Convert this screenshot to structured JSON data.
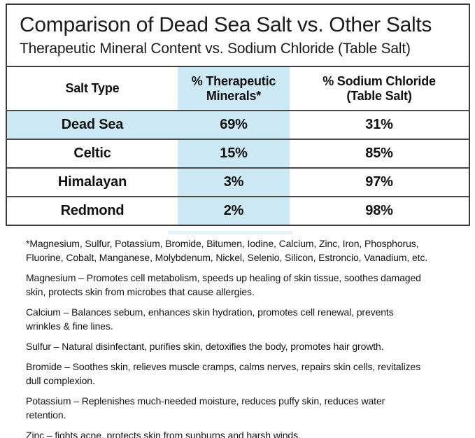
{
  "header": {
    "title": "Comparison of Dead Sea Salt vs. Other Salts",
    "subtitle": "Therapeutic Mineral Content vs. Sodium Chloride (Table Salt)"
  },
  "table": {
    "headers": {
      "salt_type": "Salt Type",
      "therapeutic_line1": "% Therapeutic",
      "therapeutic_line2": "Minerals*",
      "sodium_line1": "%  Sodium Chloride",
      "sodium_line2": "(Table Salt)"
    },
    "rows": [
      {
        "salt_type": "Dead Sea",
        "therapeutic_minerals": "69%",
        "sodium_chloride": "31%",
        "highlighted": true
      },
      {
        "salt_type": "Celtic",
        "therapeutic_minerals": "15%",
        "sodium_chloride": "85%",
        "highlighted": false
      },
      {
        "salt_type": "Himalayan",
        "therapeutic_minerals": "3%",
        "sodium_chloride": "97%",
        "highlighted": false
      },
      {
        "salt_type": "Redmond",
        "therapeutic_minerals": "2%",
        "sodium_chloride": "98%",
        "highlighted": false
      }
    ]
  },
  "footnotes": {
    "paragraphs": [
      "*Magnesium, Sulfur, Potassium, Bromide, Bitumen, Iodine, Calcium, Zinc, Iron, Phosphorus,\nFluorine, Cobalt, Manganese, Molybdenum, Nickel, Selenio, Silicon, Estroncio, Vanadium, etc.",
      "Magnesium – Promotes cell metabolism, speeds up healing of skin tissue, soothes damaged\nskin, protects skin from microbes that cause allergies.",
      "Calcium – Balances sebum, enhances skin hydration, promotes cell renewal, prevents\nwrinkles & fine lines.",
      "Sulfur – Natural disinfectant, purifies skin, detoxifies the body, promotes hair growth.",
      "Bromide – Soothes skin, relieves muscle cramps, calms nerves, repairs skin cells, revitalizes\ndull complexion.",
      "Potassium – Replenishes much-needed moisture, reduces puffy skin, reduces water\nretention.",
      "Zinc – fights acne, protects skin from sunburns and harsh winds."
    ]
  },
  "colors": {
    "highlight_blue": "#cde9f6",
    "border_dark": "#3c3c3c",
    "text": "#111111"
  },
  "chart_data": {
    "type": "table",
    "title": "Comparison of Dead Sea Salt vs. Other Salts",
    "subtitle": "Therapeutic Mineral Content vs. Sodium Chloride (Table Salt)",
    "columns": [
      "Salt Type",
      "% Therapeutic Minerals*",
      "% Sodium Chloride (Table Salt)"
    ],
    "categories": [
      "Dead Sea",
      "Celtic",
      "Himalayan",
      "Redmond"
    ],
    "series": [
      {
        "name": "% Therapeutic Minerals",
        "unit": "%",
        "values": [
          69,
          15,
          3,
          2
        ]
      },
      {
        "name": "% Sodium Chloride (Table Salt)",
        "unit": "%",
        "values": [
          31,
          85,
          97,
          98
        ]
      }
    ],
    "highlighted_category": "Dead Sea",
    "legend_position": "none",
    "grid": "horizontal-rules"
  }
}
